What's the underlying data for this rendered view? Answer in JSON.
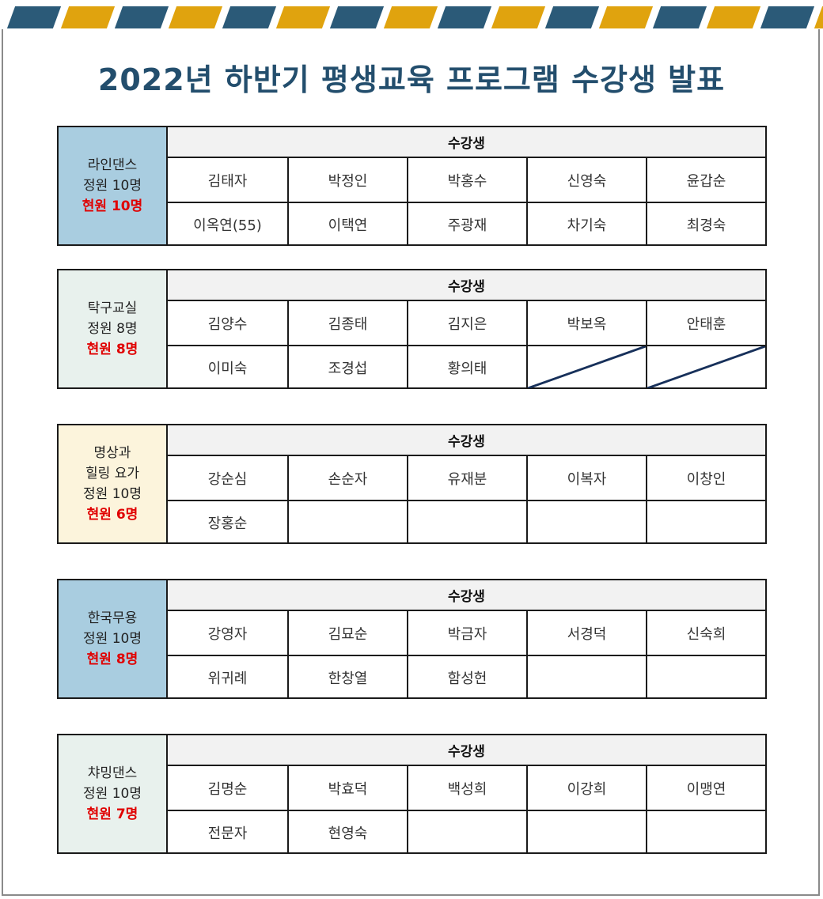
{
  "page": {
    "title": "2022년 하반기 평생교육 프로그램 수강생 발표"
  },
  "colors": {
    "title": "#234e6d",
    "stripe_dark": "#2b5a78",
    "stripe_gold": "#e0a30e",
    "current_count": "#e00000"
  },
  "programs": [
    {
      "name_lines": [
        "라인댄스"
      ],
      "capacity": "정원 10명",
      "current": "현원 10명",
      "side_color": "#a9cde0",
      "header": "수강생",
      "students": [
        "김태자",
        "박정인",
        "박홍수",
        "신영숙",
        "윤갑순",
        "이옥연(55)",
        "이택연",
        "주광재",
        "차기숙",
        "최경숙"
      ],
      "slashed": []
    },
    {
      "name_lines": [
        "탁구교실"
      ],
      "capacity": "정원 8명",
      "current": "현원 8명",
      "side_color": "#e8f1ed",
      "header": "수강생",
      "students": [
        "김양수",
        "김종태",
        "김지은",
        "박보옥",
        "안태훈",
        "이미숙",
        "조경섭",
        "황의태",
        "",
        ""
      ],
      "slashed": [
        8,
        9
      ]
    },
    {
      "name_lines": [
        "명상과",
        "힐링 요가"
      ],
      "capacity": "정원 10명",
      "current": "현원 6명",
      "side_color": "#fcf4dc",
      "header": "수강생",
      "students": [
        "강순심",
        "손순자",
        "유재분",
        "이복자",
        "이창인",
        "장홍순",
        "",
        "",
        "",
        ""
      ],
      "slashed": []
    },
    {
      "name_lines": [
        "한국무용"
      ],
      "capacity": "정원 10명",
      "current": "현원 8명",
      "side_color": "#a9cde0",
      "header": "수강생",
      "students": [
        "강영자",
        "김묘순",
        "박금자",
        "서경덕",
        "신숙희",
        "위귀례",
        "한창열",
        "함성헌",
        "",
        ""
      ],
      "slashed": []
    },
    {
      "name_lines": [
        "챠밍댄스"
      ],
      "capacity": "정원 10명",
      "current": "현원 7명",
      "side_color": "#e8f1ed",
      "header": "수강생",
      "students": [
        "김명순",
        "박효덕",
        "백성희",
        "이강희",
        "이맹연",
        "전문자",
        "현영숙",
        "",
        "",
        ""
      ],
      "slashed": []
    }
  ]
}
